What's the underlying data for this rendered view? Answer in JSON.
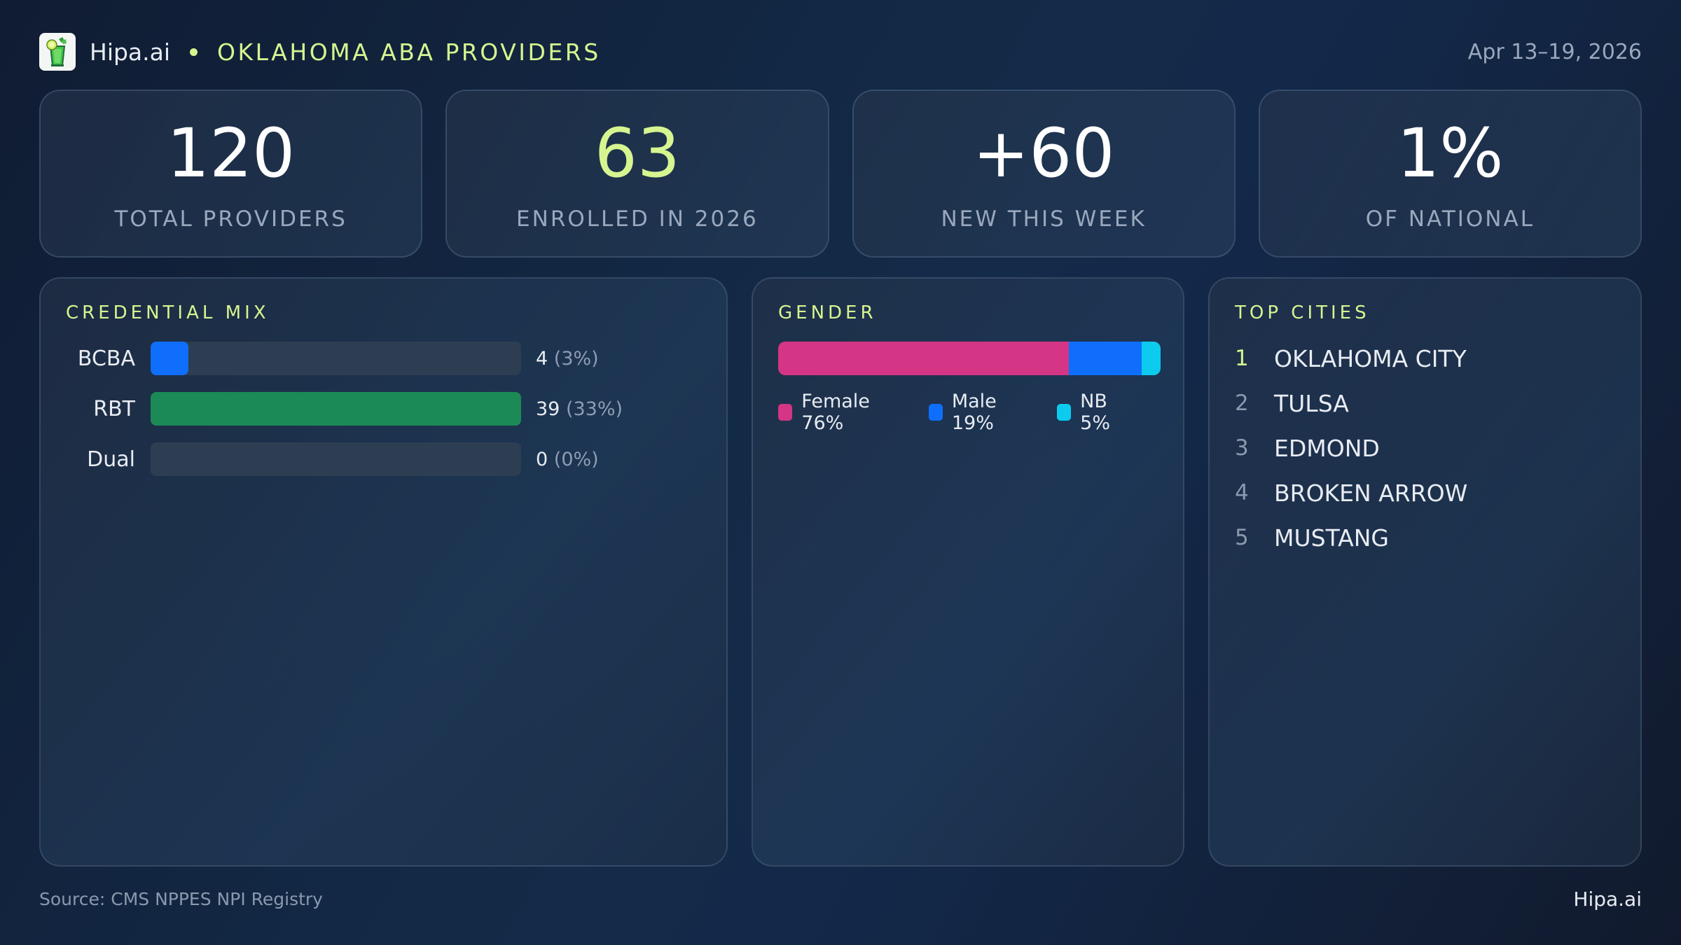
{
  "header": {
    "brand": "Hipa.ai",
    "title": "OKLAHOMA ABA PROVIDERS",
    "date_range": "Apr 13–19, 2026",
    "logo_icon": "mojito-glass-icon"
  },
  "stats": [
    {
      "value": "120",
      "label": "TOTAL PROVIDERS"
    },
    {
      "value": "63",
      "label": "ENROLLED IN 2026"
    },
    {
      "value": "+60",
      "label": "NEW THIS WEEK"
    },
    {
      "value": "1%",
      "label": "OF NATIONAL"
    }
  ],
  "credential_mix": {
    "title": "CREDENTIAL MIX",
    "rows": [
      {
        "label": "BCBA",
        "count": "4",
        "pct": "(3%)",
        "fill_pct": 10.3,
        "color": "#0f6ffc"
      },
      {
        "label": "RBT",
        "count": "39",
        "pct": "(33%)",
        "fill_pct": 100,
        "color": "#1b8a56"
      },
      {
        "label": "Dual",
        "count": "0",
        "pct": "(0%)",
        "fill_pct": 0,
        "color": "#0f6ffc"
      }
    ]
  },
  "gender": {
    "title": "GENDER",
    "segments": [
      {
        "label": "Female 76%",
        "pct": 76,
        "color": "#d43585"
      },
      {
        "label": "Male 19%",
        "pct": 19,
        "color": "#0f6ffc"
      },
      {
        "label": "NB 5%",
        "pct": 5,
        "color": "#0ccbee"
      }
    ]
  },
  "top_cities": {
    "title": "TOP CITIES",
    "items": [
      {
        "rank": "1",
        "name": "OKLAHOMA CITY"
      },
      {
        "rank": "2",
        "name": "TULSA"
      },
      {
        "rank": "3",
        "name": "EDMOND"
      },
      {
        "rank": "4",
        "name": "BROKEN ARROW"
      },
      {
        "rank": "5",
        "name": "MUSTANG"
      }
    ]
  },
  "footer": {
    "source": "Source: CMS NPPES NPI Registry",
    "brand": "Hipa.ai"
  },
  "colors": {
    "accent": "#d6f590",
    "background": "#13294a",
    "bcba": "#0f6ffc",
    "rbt": "#1b8a56",
    "female": "#d43585",
    "male": "#0f6ffc",
    "nb": "#0ccbee"
  },
  "chart_data": [
    {
      "type": "bar",
      "title": "CREDENTIAL MIX",
      "categories": [
        "BCBA",
        "RBT",
        "Dual"
      ],
      "values": [
        4,
        39,
        0
      ],
      "percent_labels": [
        "3%",
        "33%",
        "0%"
      ],
      "orientation": "horizontal"
    },
    {
      "type": "bar",
      "title": "GENDER",
      "stacked": true,
      "categories": [
        "Female",
        "Male",
        "NB"
      ],
      "values": [
        76,
        19,
        5
      ],
      "unit": "%"
    }
  ]
}
